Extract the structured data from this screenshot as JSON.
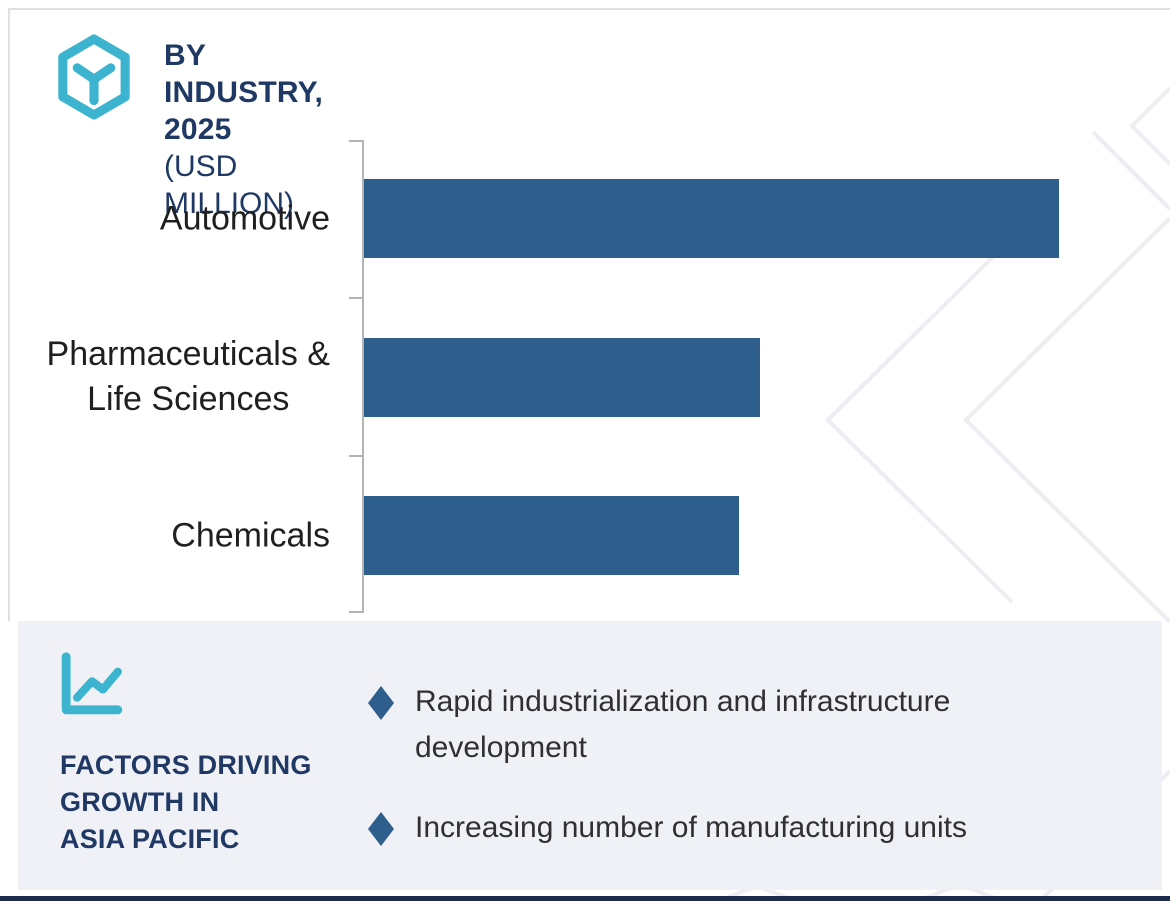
{
  "header": {
    "title": "BY INDUSTRY, 2025",
    "subtitle": "(USD MILLION)",
    "brand_icon": "hex-cube-icon"
  },
  "chart_data": {
    "type": "bar",
    "orientation": "horizontal",
    "title": "BY INDUSTRY, 2025",
    "subtitle": "(USD MILLION)",
    "unit": "USD Million",
    "categories": [
      "Automotive",
      "Pharmaceuticals &\nLife Sciences",
      "Chemicals"
    ],
    "values_pct_of_longest_bar": [
      100,
      57,
      54
    ],
    "value_axis_labels_visible": false,
    "data_labels_visible": false,
    "grid": false,
    "legend": false,
    "bar_color": "#2E5E8C",
    "axis_color": "#B4B4B8"
  },
  "factors": {
    "icon": "line-chart-icon",
    "heading": "FACTORS DRIVING\nGROWTH IN\nASIA PACIFIC",
    "items": [
      {
        "text": "Rapid industrialization and infrastructure development"
      },
      {
        "text": "Increasing number of manufacturing units"
      }
    ],
    "panel_bg": "#EFF1F6"
  },
  "colors": {
    "navy": "#1F3864",
    "teal": "#3CB4CF",
    "bar": "#2E5E8C",
    "footer_bar": "#1A2B4C",
    "watermark": "#EDEDF2"
  }
}
